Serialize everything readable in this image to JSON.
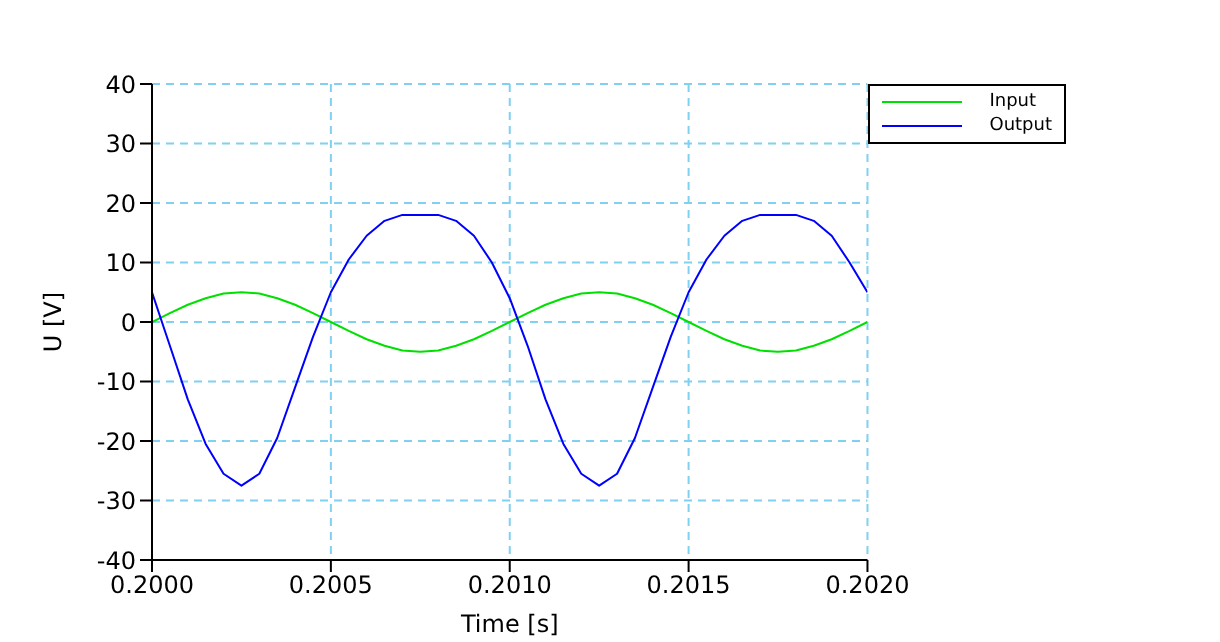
{
  "chart_data": {
    "type": "line",
    "xlabel": "Time [s]",
    "ylabel": "U [V]",
    "x": [
      0.2,
      0.20005,
      0.2001,
      0.20015,
      0.2002,
      0.20025,
      0.2003,
      0.20035,
      0.2004,
      0.20045,
      0.2005,
      0.20055,
      0.2006,
      0.20065,
      0.2007,
      0.20075,
      0.2008,
      0.20085,
      0.2009,
      0.20095,
      0.201,
      0.20105,
      0.2011,
      0.20115,
      0.2012,
      0.20125,
      0.2013,
      0.20135,
      0.2014,
      0.20145,
      0.2015,
      0.20155,
      0.2016,
      0.20165,
      0.2017,
      0.20175,
      0.2018,
      0.20185,
      0.2019,
      0.20195,
      0.202
    ],
    "series": [
      {
        "name": "Input",
        "color": "#00e000",
        "values": [
          0,
          1.5,
          2.9,
          4,
          4.8,
          5,
          4.8,
          4,
          2.9,
          1.5,
          0,
          -1.5,
          -2.9,
          -4,
          -4.8,
          -5,
          -4.8,
          -4,
          -2.9,
          -1.5,
          0,
          1.5,
          2.9,
          4,
          4.8,
          5,
          4.8,
          4,
          2.9,
          1.5,
          0,
          -1.5,
          -2.9,
          -4,
          -4.8,
          -5,
          -4.8,
          -4,
          -2.9,
          -1.5,
          0
        ]
      },
      {
        "name": "Output",
        "color": "#0000ff",
        "values": [
          5,
          -4,
          -13,
          -20.5,
          -25.5,
          -27.5,
          -25.5,
          -19.5,
          -11,
          -2.5,
          5,
          10.5,
          14.5,
          17,
          18,
          18,
          18,
          17,
          14.5,
          10,
          4,
          -4,
          -13,
          -20.5,
          -25.5,
          -27.5,
          -25.5,
          -19.5,
          -11,
          -2.5,
          5,
          10.5,
          14.5,
          17,
          18,
          18,
          18,
          17,
          14.5,
          10,
          5
        ]
      }
    ],
    "xlim": [
      0.2,
      0.202
    ],
    "xticks": [
      {
        "value": 0.2,
        "label": "0.2000"
      },
      {
        "value": 0.2005,
        "label": "0.2005"
      },
      {
        "value": 0.201,
        "label": "0.2010"
      },
      {
        "value": 0.2015,
        "label": "0.2015"
      },
      {
        "value": 0.202,
        "label": "0.2020"
      }
    ],
    "ylim": [
      -40,
      40
    ],
    "yticks": [
      -40,
      -30,
      -20,
      -10,
      0,
      10,
      20,
      30,
      40
    ],
    "grid": true,
    "legend": "top right",
    "marker": "none",
    "line_style": "solid"
  }
}
